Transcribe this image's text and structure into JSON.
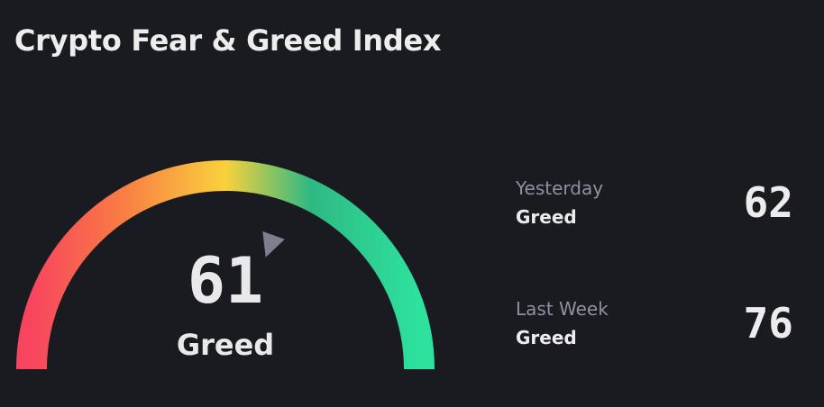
{
  "title": "Crypto Fear & Greed Index",
  "gauge": {
    "value": 61,
    "min": 0,
    "max": 100,
    "label": "Greed",
    "colors": [
      "#f8455f",
      "#f97845",
      "#f9d13b",
      "#2eb983",
      "#2ee29e"
    ],
    "pointer_color": "#7c7f8d"
  },
  "history": [
    {
      "period": "Yesterday",
      "sentiment": "Greed",
      "value": "62"
    },
    {
      "period": "Last Week",
      "sentiment": "Greed",
      "value": "76"
    }
  ]
}
